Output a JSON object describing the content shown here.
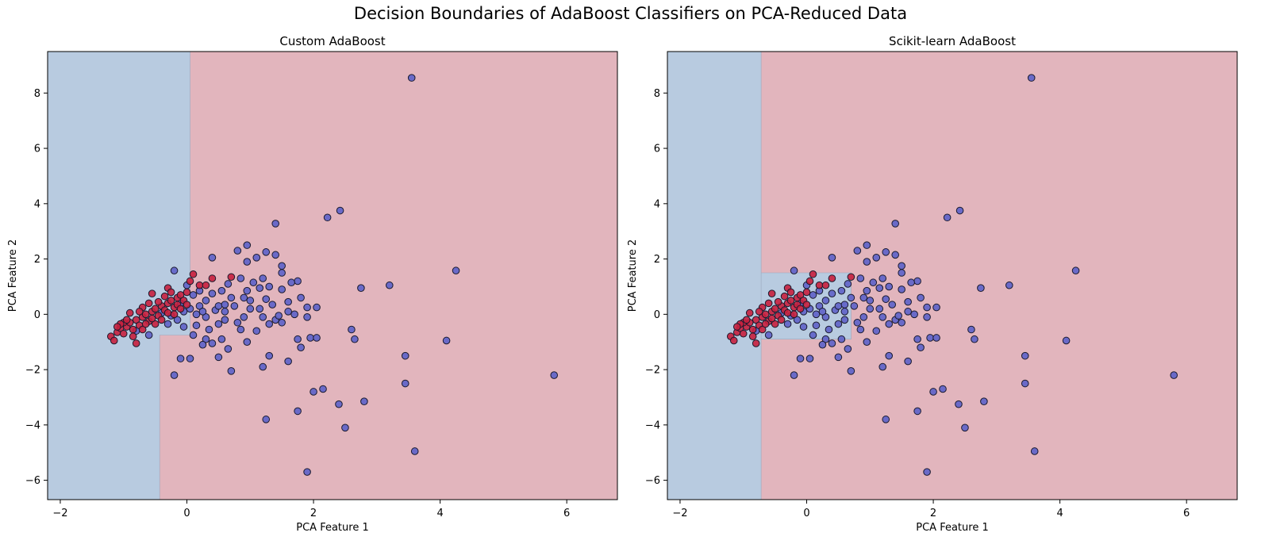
{
  "figure": {
    "suptitle": "Decision Boundaries of AdaBoost Classifiers on PCA-Reduced Data"
  },
  "colors": {
    "blue_region": "#b8cbe0",
    "red_region": "#e2b5bd",
    "blue_point": "#6366c8",
    "red_point": "#c8203e",
    "edge": "#1a1a2e"
  },
  "chart_data": [
    {
      "type": "scatter",
      "title": "Custom AdaBoost",
      "xlabel": "PCA Feature 1",
      "ylabel": "PCA Feature 2",
      "xlim": [
        -2.2,
        6.8
      ],
      "ylim": [
        -6.7,
        9.5
      ],
      "xticks": [
        -2,
        0,
        2,
        4,
        6
      ],
      "yticks": [
        -6,
        -4,
        -2,
        0,
        2,
        4,
        6,
        8
      ],
      "xtick_labels": [
        "−2",
        "0",
        "2",
        "4",
        "6"
      ],
      "ytick_labels": [
        "−6",
        "−4",
        "−2",
        "0",
        "2",
        "4",
        "6",
        "8"
      ],
      "grid": false,
      "regions": [
        {
          "class": "blue",
          "polygon": [
            [
              -2.2,
              -6.7
            ],
            [
              -0.43,
              -6.7
            ],
            [
              -0.43,
              -0.75
            ],
            [
              0.05,
              -0.75
            ],
            [
              0.05,
              9.5
            ],
            [
              -2.2,
              9.5
            ]
          ]
        }
      ]
    },
    {
      "type": "scatter",
      "title": "Scikit-learn AdaBoost",
      "xlabel": "PCA Feature 1",
      "ylabel": "PCA Feature 2",
      "xlim": [
        -2.2,
        6.8
      ],
      "ylim": [
        -6.7,
        9.5
      ],
      "xticks": [
        -2,
        0,
        2,
        4,
        6
      ],
      "yticks": [
        -6,
        -4,
        -2,
        0,
        2,
        4,
        6,
        8
      ],
      "xtick_labels": [
        "−2",
        "0",
        "2",
        "4",
        "6"
      ],
      "ytick_labels": [
        "−6",
        "−4",
        "−2",
        "0",
        "2",
        "4",
        "6",
        "8"
      ],
      "grid": false,
      "regions": [
        {
          "class": "blue",
          "polygon": [
            [
              -2.2,
              -6.7
            ],
            [
              -0.72,
              -6.7
            ],
            [
              -0.72,
              1.5
            ],
            [
              0.7,
              1.5
            ],
            [
              0.7,
              -0.9
            ],
            [
              -0.72,
              -0.9
            ],
            [
              -0.72,
              -6.7
            ],
            [
              -0.72,
              9.5
            ],
            [
              -2.2,
              9.5
            ]
          ]
        }
      ]
    }
  ],
  "points_blue": [
    [
      3.55,
      8.55
    ],
    [
      2.42,
      3.75
    ],
    [
      2.22,
      3.5
    ],
    [
      1.4,
      3.28
    ],
    [
      4.25,
      1.58
    ],
    [
      3.2,
      1.05
    ],
    [
      2.75,
      0.95
    ],
    [
      1.25,
      2.25
    ],
    [
      0.95,
      2.5
    ],
    [
      0.8,
      2.3
    ],
    [
      1.1,
      2.05
    ],
    [
      1.4,
      2.15
    ],
    [
      0.4,
      2.05
    ],
    [
      0.95,
      1.9
    ],
    [
      1.5,
      1.75
    ],
    [
      1.5,
      1.5
    ],
    [
      1.75,
      1.2
    ],
    [
      1.65,
      1.15
    ],
    [
      1.2,
      1.3
    ],
    [
      1.05,
      1.15
    ],
    [
      0.85,
      1.3
    ],
    [
      0.65,
      1.1
    ],
    [
      0.55,
      0.85
    ],
    [
      0.4,
      0.75
    ],
    [
      0.3,
      0.5
    ],
    [
      0.7,
      0.6
    ],
    [
      0.9,
      0.6
    ],
    [
      1.15,
      0.95
    ],
    [
      1.3,
      1.0
    ],
    [
      1.5,
      0.9
    ],
    [
      1.8,
      0.6
    ],
    [
      1.9,
      0.25
    ],
    [
      2.05,
      0.25
    ],
    [
      1.9,
      -0.1
    ],
    [
      1.6,
      0.1
    ],
    [
      1.4,
      -0.2
    ],
    [
      1.2,
      -0.1
    ],
    [
      1.0,
      0.2
    ],
    [
      0.8,
      -0.3
    ],
    [
      0.6,
      0.1
    ],
    [
      0.45,
      0.15
    ],
    [
      0.3,
      -0.1
    ],
    [
      0.15,
      -0.4
    ],
    [
      -0.05,
      -0.45
    ],
    [
      0.1,
      -0.75
    ],
    [
      0.3,
      -0.9
    ],
    [
      0.55,
      -0.9
    ],
    [
      0.85,
      -0.55
    ],
    [
      1.1,
      -0.6
    ],
    [
      1.3,
      -0.35
    ],
    [
      1.5,
      -0.3
    ],
    [
      1.75,
      -0.9
    ],
    [
      1.95,
      -0.85
    ],
    [
      1.8,
      -1.2
    ],
    [
      1.6,
      -1.7
    ],
    [
      1.3,
      -1.5
    ],
    [
      1.2,
      -1.9
    ],
    [
      0.95,
      -1.0
    ],
    [
      0.65,
      -1.25
    ],
    [
      0.4,
      -1.05
    ],
    [
      0.25,
      -1.1
    ],
    [
      0.05,
      -1.6
    ],
    [
      -0.1,
      -1.6
    ],
    [
      -0.2,
      -2.2
    ],
    [
      0.7,
      -2.05
    ],
    [
      0.5,
      -1.55
    ],
    [
      2.6,
      -0.55
    ],
    [
      2.65,
      -0.9
    ],
    [
      2.05,
      -0.85
    ],
    [
      3.45,
      -1.5
    ],
    [
      4.1,
      -0.95
    ],
    [
      5.8,
      -2.2
    ],
    [
      3.45,
      -2.5
    ],
    [
      2.0,
      -2.8
    ],
    [
      2.15,
      -2.7
    ],
    [
      2.4,
      -3.25
    ],
    [
      2.8,
      -3.15
    ],
    [
      1.75,
      -3.5
    ],
    [
      1.25,
      -3.8
    ],
    [
      2.5,
      -4.1
    ],
    [
      3.6,
      -4.95
    ],
    [
      1.9,
      -5.7
    ],
    [
      -0.2,
      1.58
    ],
    [
      0.0,
      1.05
    ],
    [
      0.1,
      0.7
    ],
    [
      0.05,
      0.2
    ],
    [
      -0.05,
      0.1
    ],
    [
      -0.15,
      -0.2
    ],
    [
      -0.3,
      -0.35
    ],
    [
      -0.6,
      -0.75
    ],
    [
      -0.8,
      -0.6
    ],
    [
      0.2,
      0.3
    ],
    [
      0.15,
      0.0
    ],
    [
      0.5,
      0.3
    ],
    [
      0.6,
      -0.2
    ],
    [
      0.9,
      -0.1
    ],
    [
      1.0,
      0.5
    ],
    [
      1.35,
      0.35
    ],
    [
      1.45,
      -0.05
    ],
    [
      0.35,
      -0.55
    ],
    [
      -0.25,
      -0.05
    ],
    [
      0.25,
      0.1
    ],
    [
      0.75,
      0.3
    ],
    [
      1.15,
      0.2
    ],
    [
      1.6,
      0.45
    ],
    [
      1.7,
      0.0
    ],
    [
      0.5,
      -0.35
    ],
    [
      0.95,
      0.85
    ],
    [
      1.25,
      0.55
    ],
    [
      -0.4,
      0.05
    ],
    [
      -0.1,
      0.4
    ],
    [
      0.2,
      0.85
    ],
    [
      0.6,
      0.35
    ]
  ],
  "points_red": [
    [
      -1.2,
      -0.8
    ],
    [
      -1.15,
      -0.95
    ],
    [
      -1.1,
      -0.65
    ],
    [
      -1.05,
      -0.5
    ],
    [
      -1.0,
      -0.7
    ],
    [
      -0.95,
      -0.45
    ],
    [
      -0.9,
      -0.3
    ],
    [
      -0.85,
      -0.55
    ],
    [
      -0.8,
      -0.2
    ],
    [
      -0.75,
      -0.4
    ],
    [
      -0.7,
      -0.1
    ],
    [
      -0.65,
      0.0
    ],
    [
      -0.6,
      -0.25
    ],
    [
      -0.55,
      0.1
    ],
    [
      -0.5,
      0.2
    ],
    [
      -0.45,
      -0.05
    ],
    [
      -0.4,
      0.3
    ],
    [
      -0.35,
      0.15
    ],
    [
      -0.3,
      0.4
    ],
    [
      -0.25,
      0.5
    ],
    [
      -0.2,
      0.25
    ],
    [
      -0.15,
      0.6
    ],
    [
      -0.1,
      0.7
    ],
    [
      -0.05,
      0.5
    ],
    [
      0.0,
      0.8
    ],
    [
      0.05,
      1.2
    ],
    [
      0.1,
      1.45
    ],
    [
      0.2,
      1.05
    ],
    [
      0.3,
      1.05
    ],
    [
      0.4,
      1.3
    ],
    [
      0.7,
      1.35
    ],
    [
      -0.3,
      0.95
    ],
    [
      -0.55,
      0.75
    ],
    [
      -0.8,
      -1.05
    ],
    [
      -1.0,
      -0.3
    ],
    [
      -0.9,
      0.05
    ],
    [
      -0.7,
      0.25
    ],
    [
      -0.6,
      0.4
    ],
    [
      -0.5,
      -0.35
    ],
    [
      -0.4,
      -0.2
    ],
    [
      -0.3,
      0.05
    ],
    [
      -0.2,
      0.0
    ],
    [
      -0.95,
      -0.2
    ],
    [
      -1.05,
      -0.35
    ],
    [
      -0.85,
      -0.8
    ],
    [
      -0.7,
      -0.55
    ],
    [
      -0.65,
      -0.35
    ],
    [
      -0.45,
      0.45
    ],
    [
      -0.35,
      0.65
    ],
    [
      -0.25,
      0.8
    ],
    [
      -0.15,
      0.35
    ],
    [
      -0.1,
      0.2
    ],
    [
      0.0,
      0.35
    ],
    [
      -0.55,
      -0.15
    ],
    [
      -0.75,
      0.1
    ],
    [
      -1.1,
      -0.45
    ]
  ]
}
